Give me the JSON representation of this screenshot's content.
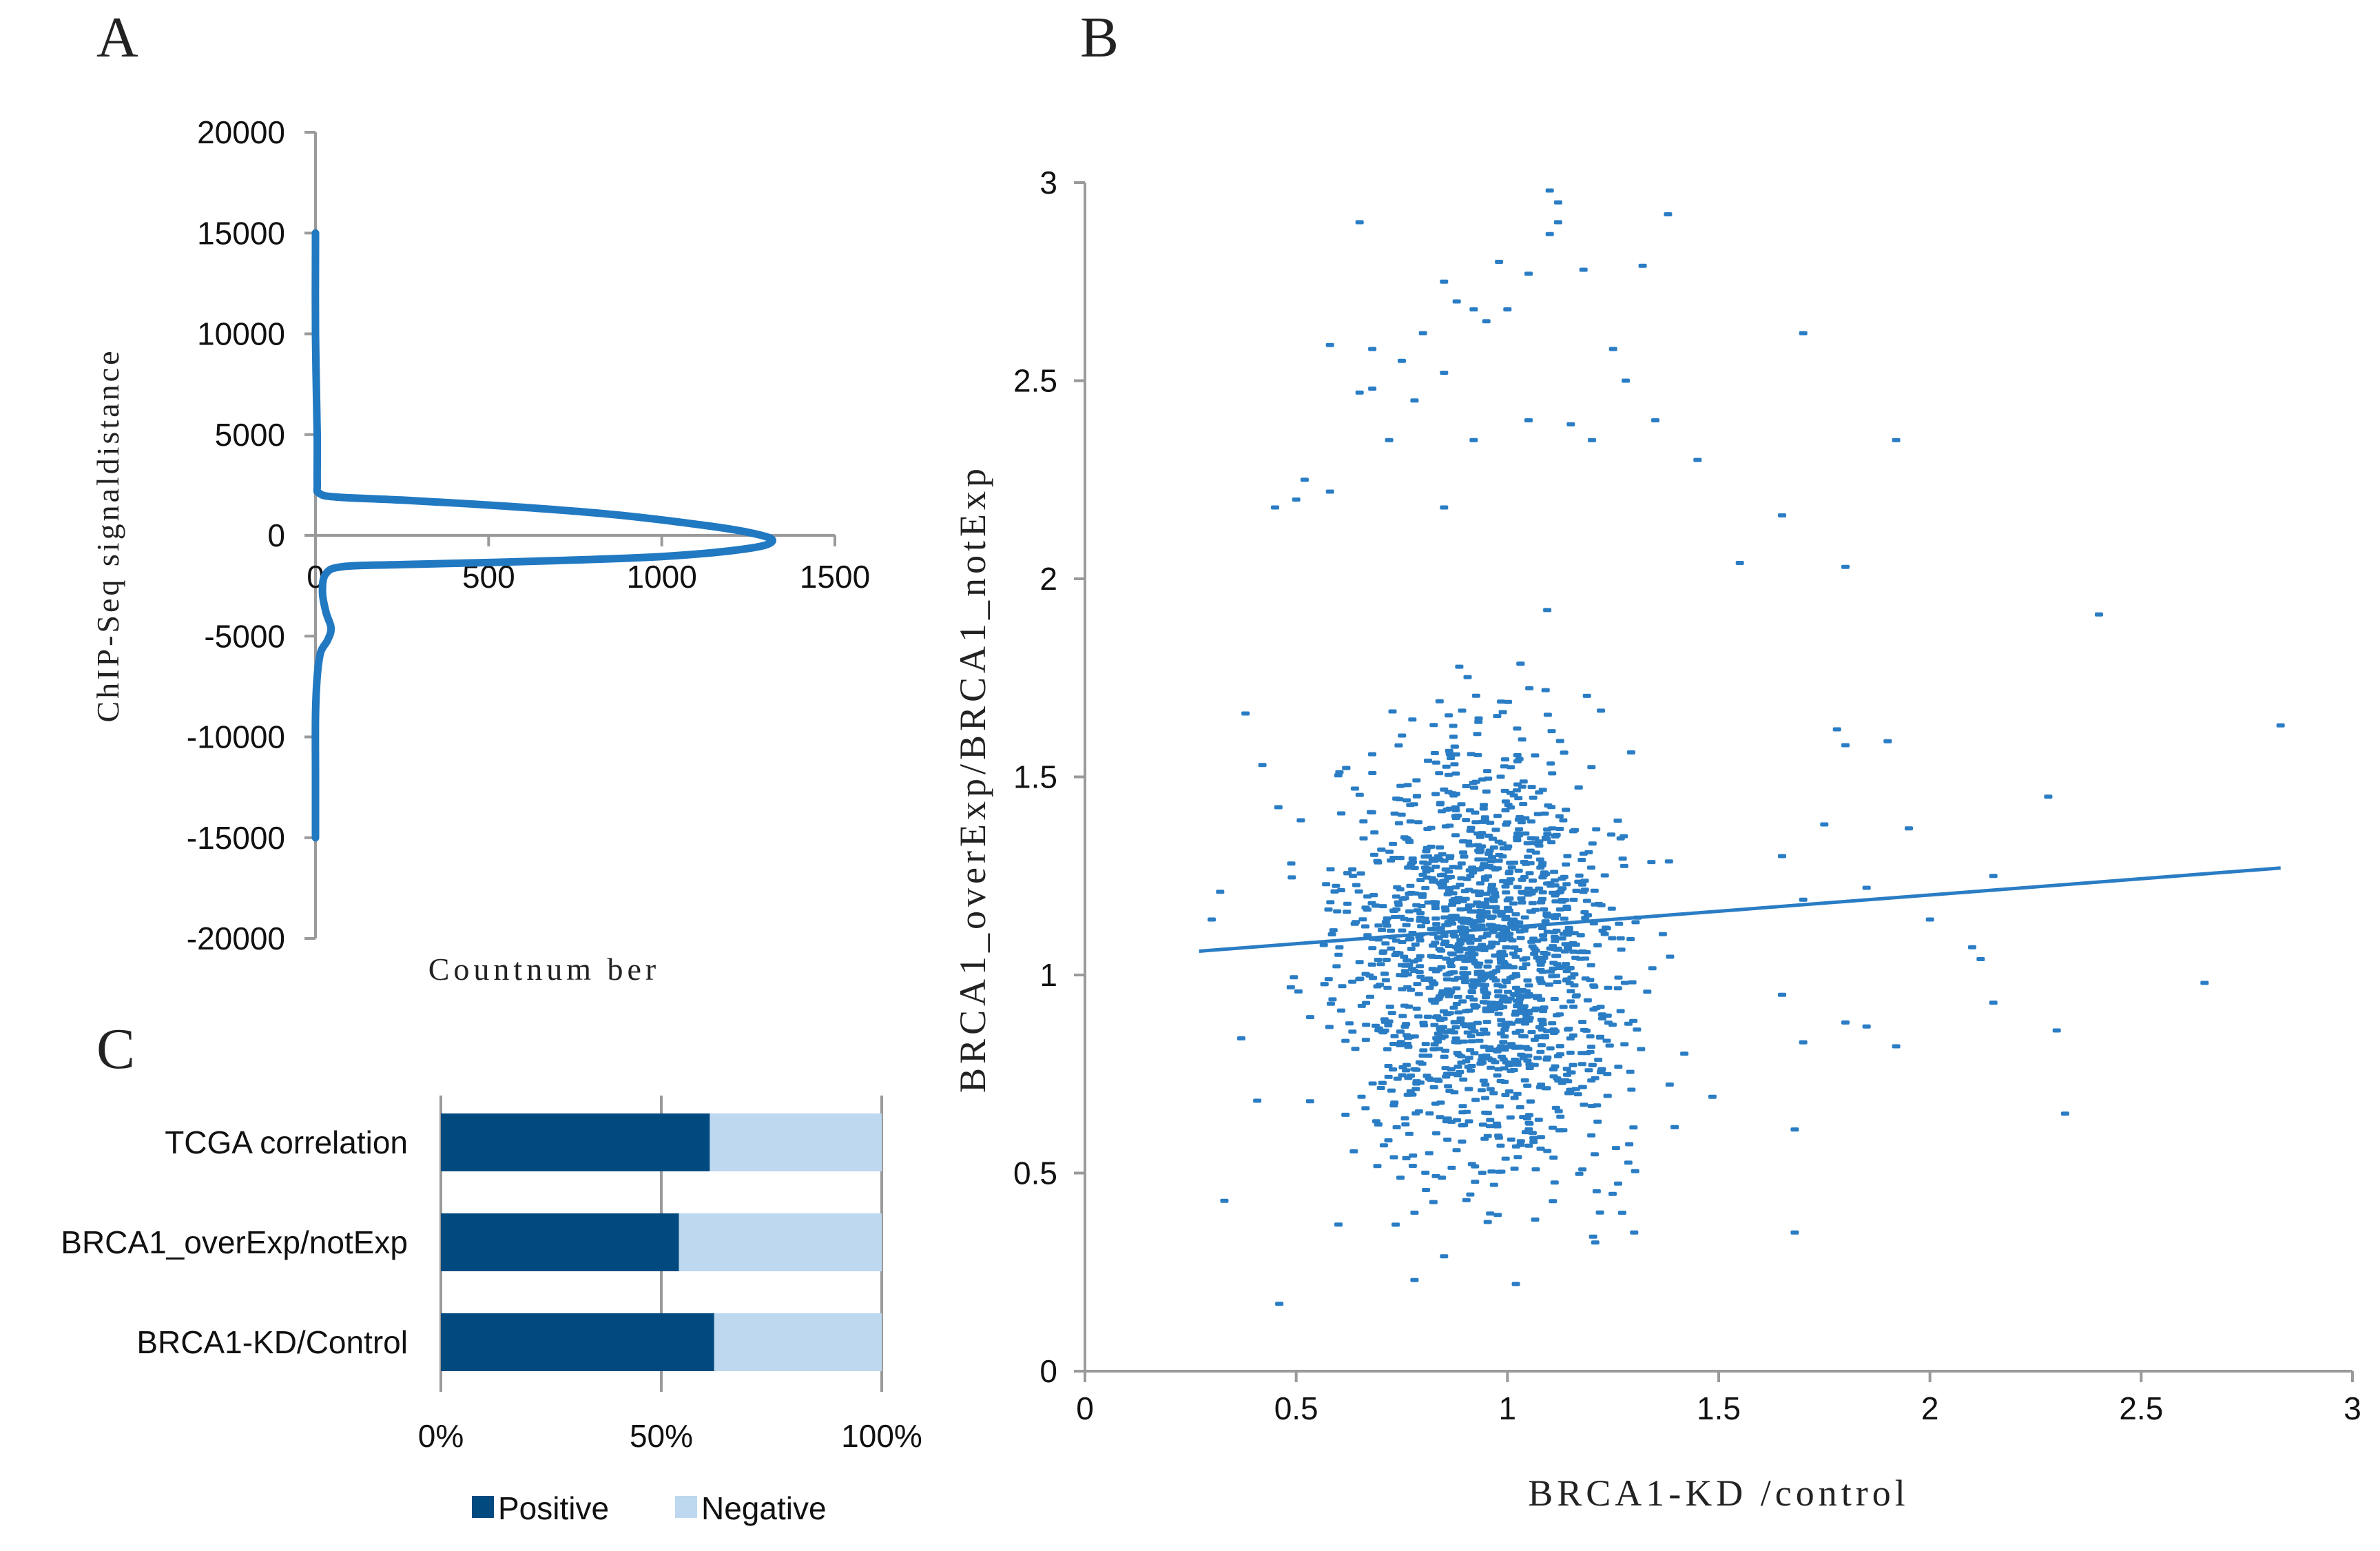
{
  "panel_labels": {
    "a": "A",
    "b": "B",
    "c": "C"
  },
  "colors": {
    "curve": "#2179c2",
    "scatter": "#2a7dc4",
    "positive": "#004a80",
    "negative": "#bdd8ef",
    "axis": "#9a9a9a",
    "text": "#111111"
  },
  "chart_data": [
    {
      "panel": "A",
      "type": "line",
      "title": "",
      "xlabel": "Countnum ber",
      "ylabel": "ChIP-Seq signaldistance",
      "xlim": [
        0,
        1500
      ],
      "ylim": [
        -20000,
        20000
      ],
      "x_ticks": [
        "0",
        "500",
        "1000",
        "1500"
      ],
      "y_ticks": [
        "20000",
        "15000",
        "10000",
        "5000",
        "0",
        "-5000",
        "-10000",
        "-15000",
        "-20000"
      ],
      "points": [
        {
          "count": 0,
          "distance": 15000
        },
        {
          "count": 0,
          "distance": 10000
        },
        {
          "count": 5,
          "distance": 5000
        },
        {
          "count": 5,
          "distance": 2600
        },
        {
          "count": 10,
          "distance": 2100
        },
        {
          "count": 60,
          "distance": 1900
        },
        {
          "count": 250,
          "distance": 1750
        },
        {
          "count": 550,
          "distance": 1450
        },
        {
          "count": 850,
          "distance": 1050
        },
        {
          "count": 1100,
          "distance": 550
        },
        {
          "count": 1250,
          "distance": 150
        },
        {
          "count": 1320,
          "distance": -250
        },
        {
          "count": 1250,
          "distance": -650
        },
        {
          "count": 1000,
          "distance": -1050
        },
        {
          "count": 600,
          "distance": -1300
        },
        {
          "count": 250,
          "distance": -1450
        },
        {
          "count": 80,
          "distance": -1550
        },
        {
          "count": 30,
          "distance": -1900
        },
        {
          "count": 20,
          "distance": -2800
        },
        {
          "count": 30,
          "distance": -3800
        },
        {
          "count": 45,
          "distance": -4600
        },
        {
          "count": 35,
          "distance": -5200
        },
        {
          "count": 15,
          "distance": -5800
        },
        {
          "count": 5,
          "distance": -7000
        },
        {
          "count": 0,
          "distance": -9000
        },
        {
          "count": 0,
          "distance": -12000
        },
        {
          "count": 0,
          "distance": -15000
        }
      ]
    },
    {
      "panel": "B",
      "type": "scatter",
      "title": "",
      "xlabel": "BRCA1-KD /control",
      "ylabel": "BRCA1_overExp/BRCA1_notExp",
      "xlim": [
        0,
        3
      ],
      "ylim": [
        0,
        3
      ],
      "x_ticks": [
        "0",
        "0.5",
        "1",
        "1.5",
        "2",
        "2.5",
        "3"
      ],
      "y_ticks": [
        "0",
        "0.5",
        "1",
        "1.5",
        "2",
        "2.5",
        "3"
      ],
      "trendline": {
        "x": [
          0.27,
          2.83
        ],
        "y": [
          1.06,
          1.27
        ]
      },
      "points_note": "≈1700 genes; distribution center (0.95, 1.05); outliers listed below",
      "cloud": {
        "n": 1700,
        "x_center": 0.95,
        "x_sd": 0.24,
        "y_center": 1.05,
        "y_sd": 0.36
      },
      "outliers": [
        [
          1.1,
          2.98
        ],
        [
          1.38,
          2.92
        ],
        [
          1.12,
          2.95
        ],
        [
          0.65,
          2.9
        ],
        [
          1.12,
          2.9
        ],
        [
          1.1,
          2.87
        ],
        [
          0.98,
          2.8
        ],
        [
          1.32,
          2.79
        ],
        [
          1.18,
          2.78
        ],
        [
          1.05,
          2.77
        ],
        [
          0.85,
          2.75
        ],
        [
          0.88,
          2.7
        ],
        [
          0.92,
          2.68
        ],
        [
          1.0,
          2.68
        ],
        [
          0.95,
          2.65
        ],
        [
          0.8,
          2.62
        ],
        [
          1.7,
          2.62
        ],
        [
          0.58,
          2.59
        ],
        [
          0.68,
          2.58
        ],
        [
          1.25,
          2.58
        ],
        [
          0.75,
          2.55
        ],
        [
          0.65,
          2.47
        ],
        [
          0.68,
          2.48
        ],
        [
          0.85,
          2.52
        ],
        [
          1.28,
          2.5
        ],
        [
          0.78,
          2.45
        ],
        [
          1.05,
          2.4
        ],
        [
          1.15,
          2.39
        ],
        [
          1.92,
          2.35
        ],
        [
          0.72,
          2.35
        ],
        [
          0.92,
          2.35
        ],
        [
          1.35,
          2.4
        ],
        [
          1.2,
          2.35
        ],
        [
          1.45,
          2.3
        ],
        [
          0.52,
          2.25
        ],
        [
          0.58,
          2.22
        ],
        [
          0.5,
          2.2
        ],
        [
          0.45,
          2.18
        ],
        [
          1.65,
          2.16
        ],
        [
          0.85,
          2.18
        ],
        [
          1.8,
          2.03
        ],
        [
          1.55,
          2.04
        ],
        [
          2.4,
          1.91
        ],
        [
          1.9,
          1.59
        ],
        [
          1.78,
          1.62
        ],
        [
          1.8,
          1.58
        ],
        [
          2.83,
          1.63
        ],
        [
          0.38,
          1.66
        ],
        [
          0.42,
          1.53
        ],
        [
          2.28,
          1.45
        ],
        [
          1.95,
          1.37
        ],
        [
          1.75,
          1.38
        ],
        [
          1.65,
          1.3
        ],
        [
          2.15,
          1.25
        ],
        [
          1.85,
          1.22
        ],
        [
          1.7,
          1.19
        ],
        [
          2.0,
          1.14
        ],
        [
          2.1,
          1.07
        ],
        [
          2.12,
          1.04
        ],
        [
          2.65,
          0.98
        ],
        [
          1.65,
          0.95
        ],
        [
          1.8,
          0.88
        ],
        [
          1.85,
          0.87
        ],
        [
          2.15,
          0.93
        ],
        [
          1.7,
          0.83
        ],
        [
          1.92,
          0.82
        ],
        [
          2.3,
          0.86
        ],
        [
          1.68,
          0.61
        ],
        [
          2.32,
          0.65
        ],
        [
          0.32,
          1.21
        ],
        [
          0.3,
          1.14
        ],
        [
          0.37,
          0.84
        ],
        [
          0.33,
          0.43
        ],
        [
          0.46,
          0.17
        ],
        [
          1.02,
          0.22
        ],
        [
          0.78,
          0.23
        ],
        [
          0.85,
          0.29
        ],
        [
          1.68,
          0.35
        ],
        [
          1.3,
          0.35
        ],
        [
          0.6,
          0.37
        ],
        [
          0.78,
          0.4
        ]
      ]
    },
    {
      "panel": "C",
      "type": "bar",
      "orientation": "horizontal",
      "stacked": "percent",
      "title": "",
      "categories": [
        "TCGA correlation",
        "BRCA1_overExp/notExp",
        "BRCA1-KD/Control"
      ],
      "series": [
        {
          "name": "Positive",
          "values": [
            61,
            54,
            62
          ]
        },
        {
          "name": "Negative",
          "values": [
            39,
            46,
            38
          ]
        }
      ],
      "xlim": [
        0,
        100
      ],
      "x_ticks": [
        "0%",
        "50%",
        "100%"
      ],
      "legend": "bottom"
    }
  ]
}
